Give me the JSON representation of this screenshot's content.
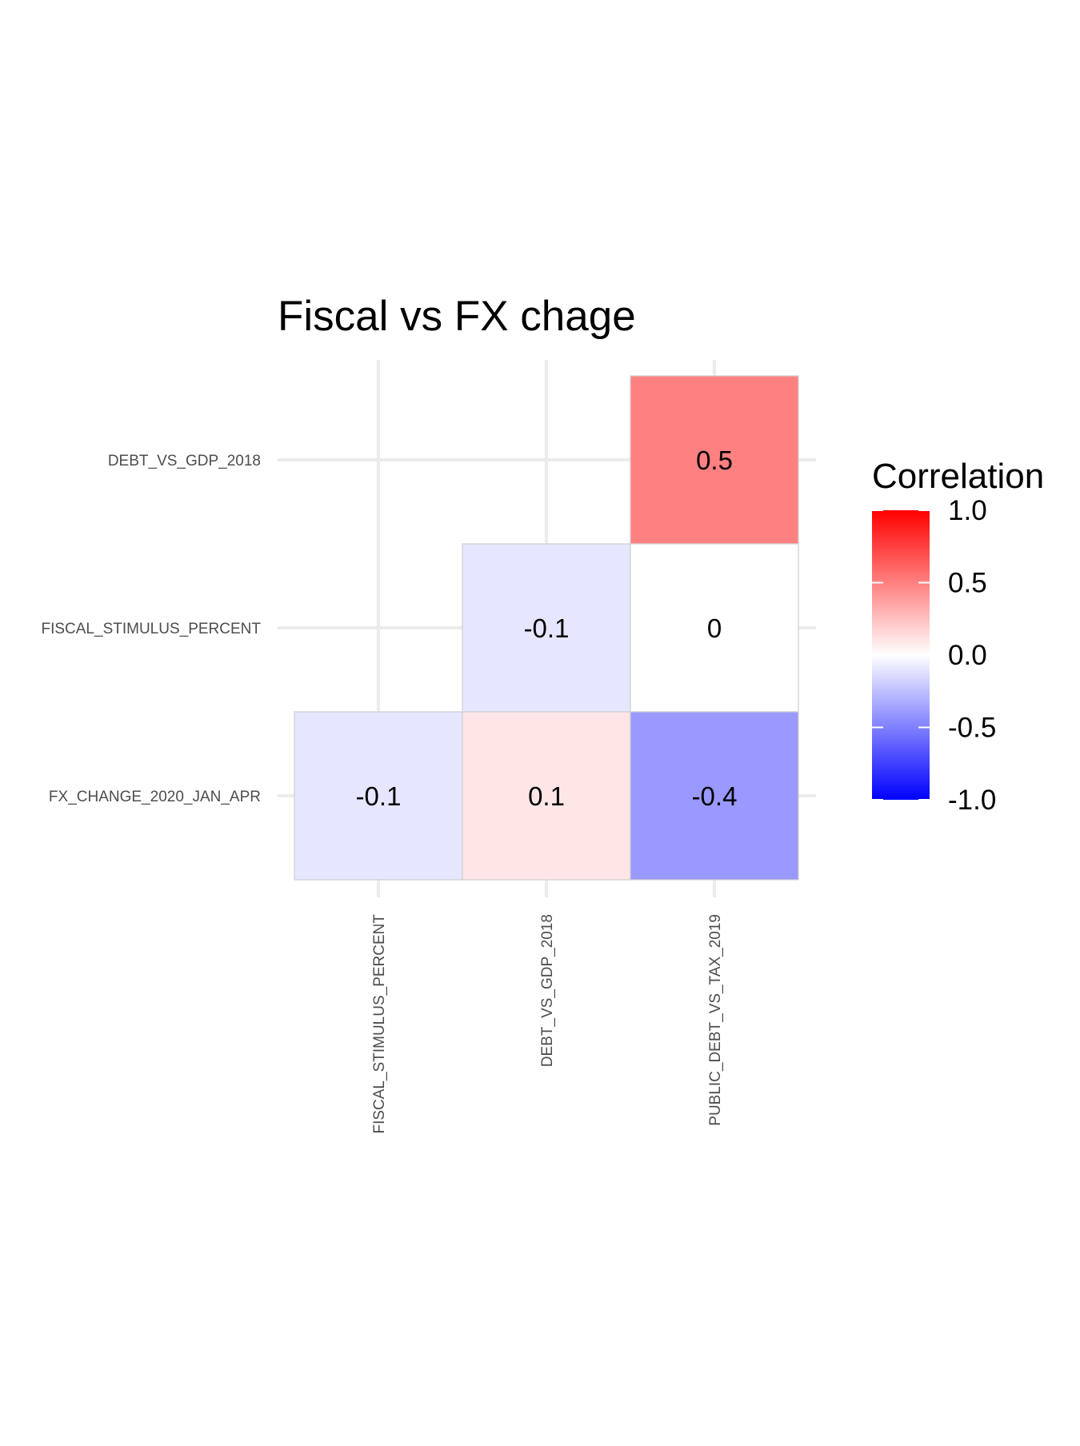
{
  "chart_data": {
    "type": "heatmap",
    "title": "Fiscal vs FX chage",
    "x_categories": [
      "FISCAL_STIMULUS_PERCENT",
      "DEBT_VS_GDP_2018",
      "PUBLIC_DEBT_VS_TAX_2019"
    ],
    "y_categories": [
      "DEBT_VS_GDP_2018",
      "FISCAL_STIMULUS_PERCENT",
      "FX_CHANGE_2020_JAN_APR"
    ],
    "cells": [
      {
        "x": "PUBLIC_DEBT_VS_TAX_2019",
        "y": "DEBT_VS_GDP_2018",
        "value": 0.5,
        "label": "0.5"
      },
      {
        "x": "DEBT_VS_GDP_2018",
        "y": "FISCAL_STIMULUS_PERCENT",
        "value": -0.1,
        "label": "-0.1"
      },
      {
        "x": "PUBLIC_DEBT_VS_TAX_2019",
        "y": "FISCAL_STIMULUS_PERCENT",
        "value": 0,
        "label": "0"
      },
      {
        "x": "FISCAL_STIMULUS_PERCENT",
        "y": "FX_CHANGE_2020_JAN_APR",
        "value": -0.1,
        "label": "-0.1"
      },
      {
        "x": "DEBT_VS_GDP_2018",
        "y": "FX_CHANGE_2020_JAN_APR",
        "value": 0.1,
        "label": "0.1"
      },
      {
        "x": "PUBLIC_DEBT_VS_TAX_2019",
        "y": "FX_CHANGE_2020_JAN_APR",
        "value": -0.4,
        "label": "-0.4"
      }
    ],
    "legend": {
      "title": "Correlation",
      "range": [
        -1,
        1
      ],
      "breaks": [
        1.0,
        0.5,
        0.0,
        -0.5,
        -1.0
      ],
      "break_labels": [
        "1.0",
        "0.5",
        "0.0",
        "-0.5",
        "-1.0"
      ],
      "low_color": "#0000ff",
      "mid_color": "#ffffff",
      "high_color": "#ff0000",
      "placement": "right"
    },
    "grid": true
  }
}
